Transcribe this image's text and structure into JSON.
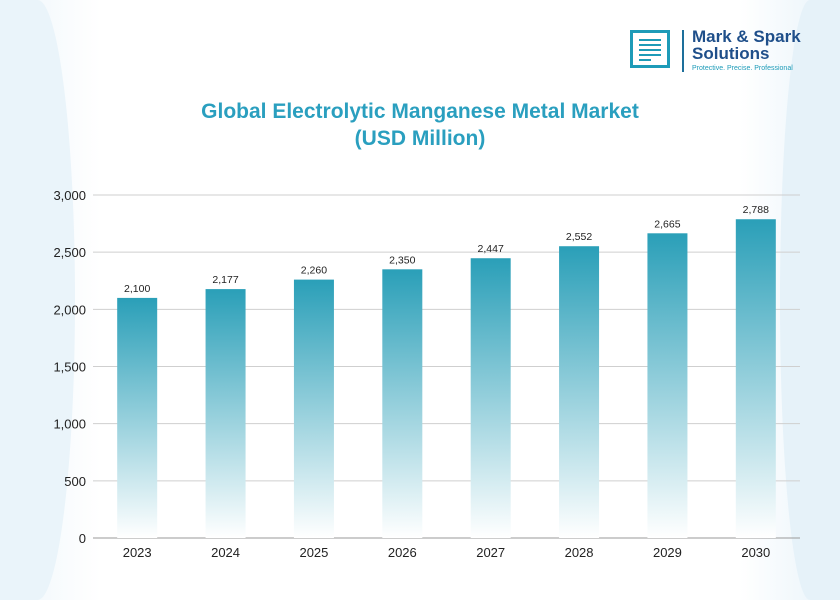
{
  "logo": {
    "name_line1": "Mark & Spark",
    "name_line2": "Solutions",
    "tagline": "Protective. Precise. Professional"
  },
  "chart_data": {
    "type": "bar",
    "title": "Global Electrolytic Manganese Metal Market",
    "subtitle": "(USD Million)",
    "categories": [
      "2023",
      "2024",
      "2025",
      "2026",
      "2027",
      "2028",
      "2029",
      "2030"
    ],
    "values": [
      2100,
      2177,
      2260,
      2350,
      2447,
      2552,
      2665,
      2788
    ],
    "data_labels": [
      "2,100",
      "2,177",
      "2,260",
      "2,350",
      "2,447",
      "2,552",
      "2,665",
      "2,788"
    ],
    "ylim": [
      0,
      3000
    ],
    "yticks": [
      0,
      500,
      1000,
      1500,
      2000,
      2500,
      3000
    ],
    "ytick_labels": [
      "0",
      "500",
      "1,000",
      "1,500",
      "2,000",
      "2,500",
      "3,000"
    ],
    "grid": true,
    "bar_color_top": "#2a9fb8",
    "bar_color_bottom": "#ffffff"
  }
}
